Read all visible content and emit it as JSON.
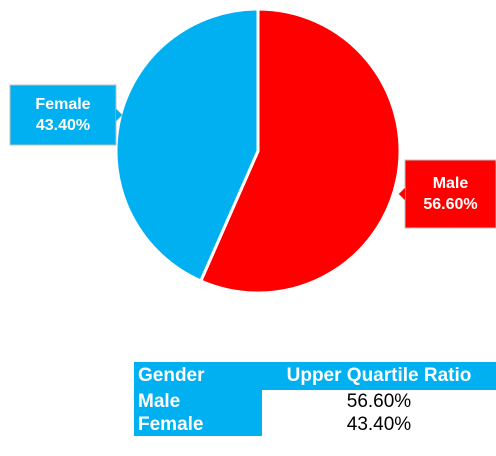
{
  "chart_data": {
    "type": "pie",
    "categories": [
      "Male",
      "Female"
    ],
    "values": [
      56.6,
      43.4
    ],
    "value_labels": [
      "56.60%",
      "43.40%"
    ],
    "colors": [
      "#ff0000",
      "#00b0f0"
    ]
  },
  "table": {
    "header": [
      "Gender",
      "Upper Quartile Ratio"
    ],
    "rows": [
      [
        "Male",
        "56.60%"
      ],
      [
        "Female",
        "43.40%"
      ]
    ]
  }
}
